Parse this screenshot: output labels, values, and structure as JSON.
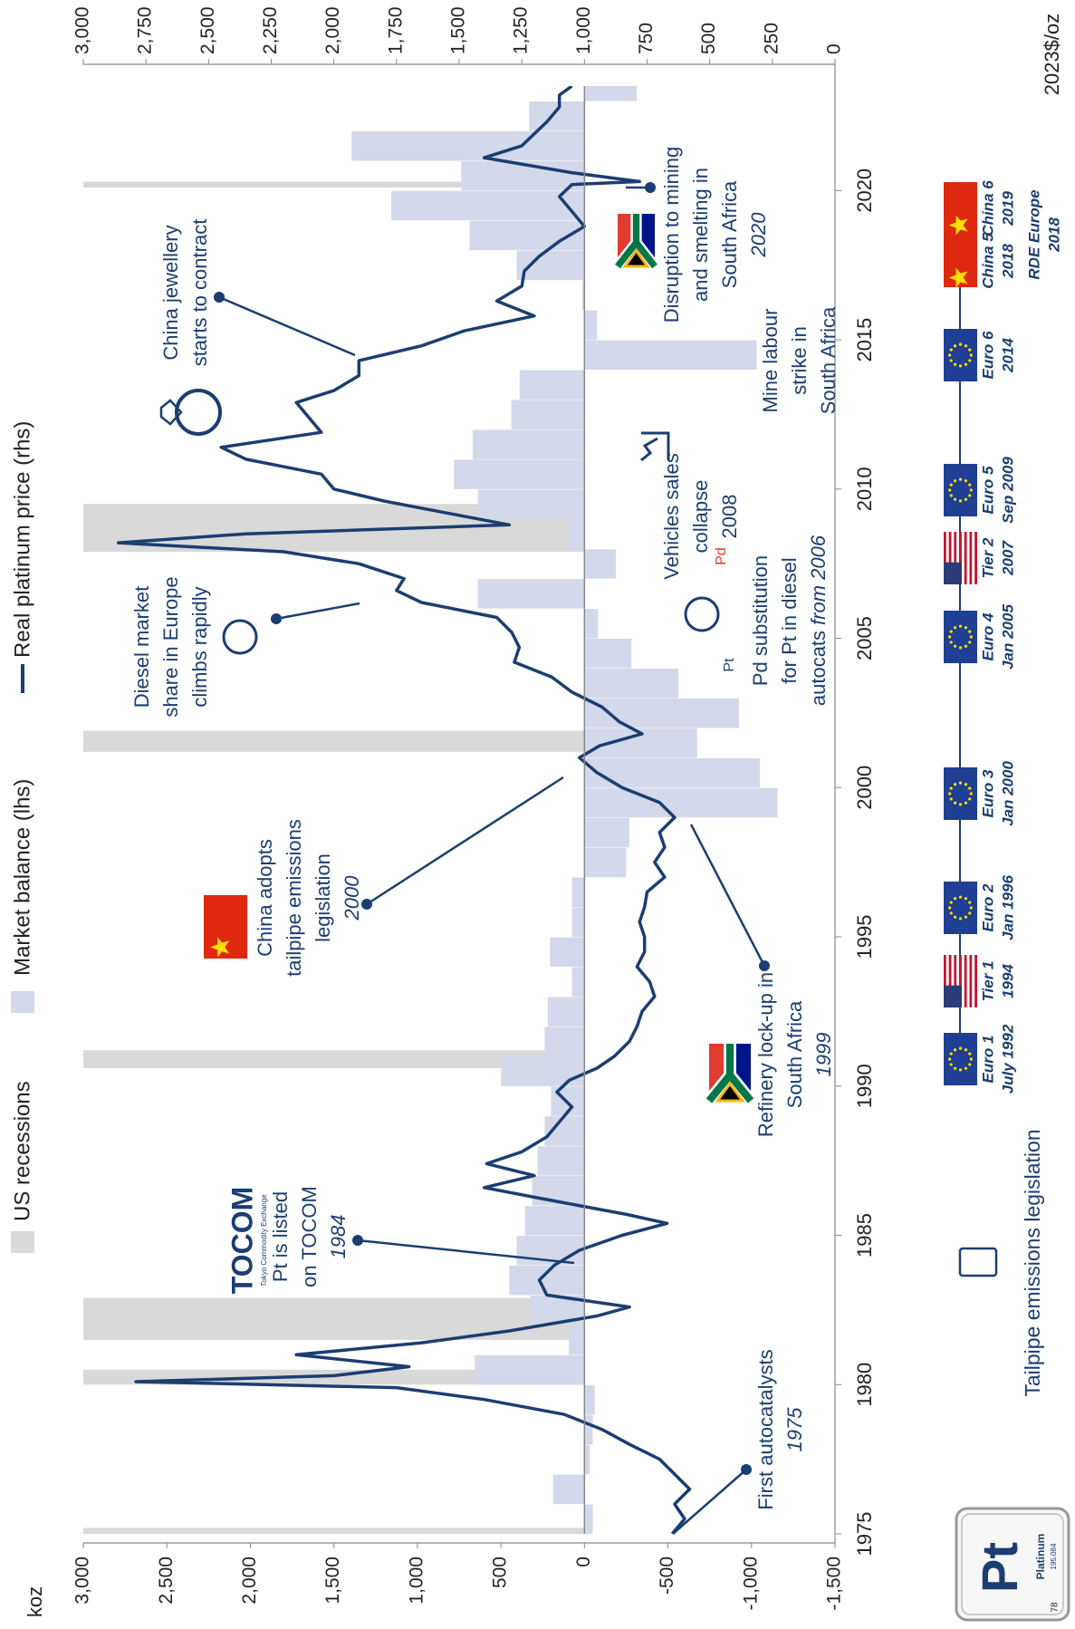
{
  "chart_data": {
    "type": "combo",
    "ylabel": "koz",
    "y2label": "2023$/oz",
    "xlim": [
      1975,
      2023.5
    ],
    "ylim": [
      -1500,
      3000
    ],
    "y2lim": [
      0,
      3000
    ],
    "xticks": [
      1975,
      1980,
      1985,
      1990,
      1995,
      2000,
      2005,
      2010,
      2015,
      2020
    ],
    "yticks": [
      {
        "value": 3000,
        "label": "3,000"
      },
      {
        "value": 2500,
        "label": "2,500"
      },
      {
        "value": 2000,
        "label": "2,000"
      },
      {
        "value": 1500,
        "label": "1,500"
      },
      {
        "value": 1000,
        "label": "1,000"
      },
      500,
      0,
      -500,
      {
        "value": -1000,
        "label": "-1,000"
      },
      {
        "value": -1500,
        "label": "-1,500"
      }
    ],
    "y2ticks": [
      {
        "value": 3000,
        "label": "3,000"
      },
      {
        "value": 2750,
        "label": "2,750"
      },
      {
        "value": 2500,
        "label": "2,500"
      },
      {
        "value": 2250,
        "label": "2,250"
      },
      {
        "value": 2000,
        "label": "2,000"
      },
      {
        "value": 1750,
        "label": "1,750"
      },
      {
        "value": 1500,
        "label": "1,500"
      },
      {
        "value": 1250,
        "label": "1,250"
      },
      {
        "value": 1000,
        "label": "1,000"
      },
      750,
      500,
      250,
      0
    ],
    "recessions": {
      "name": "US recessions",
      "color": "#d9d9d9",
      "periods": [
        [
          1973.9,
          1975.2
        ],
        [
          1980.0,
          1980.5
        ],
        [
          1981.5,
          1982.9
        ],
        [
          1990.6,
          1991.2
        ],
        [
          2001.2,
          2001.9
        ],
        [
          2007.9,
          2009.5
        ],
        [
          2020.1,
          2020.3
        ]
      ]
    },
    "series": [
      {
        "name": "Market balance (lhs)",
        "type": "bar",
        "color": "#d3d9ea",
        "x": [
          1975,
          1976,
          1977,
          1978,
          1979,
          1980,
          1981,
          1982,
          1983,
          1984,
          1985,
          1986,
          1987,
          1988,
          1989,
          1990,
          1991,
          1992,
          1993,
          1994,
          1995,
          1996,
          1997,
          1998,
          1999,
          2000,
          2001,
          2002,
          2003,
          2004,
          2005,
          2006,
          2007,
          2008,
          2009,
          2010,
          2011,
          2012,
          2013,
          2014,
          2015,
          2016,
          2017,
          2018,
          2019,
          2020,
          2021,
          2022,
          2023
        ],
        "values": [
          -50,
          188,
          -31,
          -50,
          -62,
          656,
          94,
          325,
          450,
          406,
          356,
          313,
          281,
          238,
          200,
          500,
          238,
          219,
          75,
          206,
          75,
          75,
          -250,
          -269,
          -1156,
          -1050,
          -675,
          -925,
          -563,
          -281,
          -81,
          638,
          -188,
          94,
          638,
          781,
          669,
          438,
          388,
          -1031,
          -75,
          13,
          406,
          688,
          1156,
          738,
          1394,
          331,
          -313
        ]
      },
      {
        "name": "Real platinum price (rhs)",
        "type": "line",
        "axis": "y2",
        "color": "#1b3e72",
        "x": [
          1975.0,
          1975.5,
          1976.0,
          1976.5,
          1977.0,
          1977.5,
          1978.0,
          1978.5,
          1979.0,
          1979.5,
          1979.9,
          1980.1,
          1980.3,
          1980.6,
          1981.0,
          1981.4,
          1981.8,
          1982.3,
          1982.6,
          1983.0,
          1983.5,
          1984.0,
          1984.5,
          1985.0,
          1985.4,
          1985.7,
          1986.2,
          1986.6,
          1987.0,
          1987.4,
          1987.8,
          1988.3,
          1988.8,
          1989.3,
          1989.8,
          1990.2,
          1990.6,
          1991.0,
          1991.5,
          1992.0,
          1992.5,
          1993.0,
          1993.5,
          1994.0,
          1994.5,
          1995.0,
          1995.5,
          1996.0,
          1996.5,
          1997.0,
          1997.5,
          1998.0,
          1998.5,
          1999.0,
          1999.5,
          2000.0,
          2000.5,
          2001.0,
          2001.4,
          2001.8,
          2002.2,
          2002.7,
          2003.2,
          2003.7,
          2004.2,
          2004.7,
          2005.2,
          2005.7,
          2006.2,
          2006.6,
          2007.0,
          2007.5,
          2007.9,
          2008.2,
          2008.5,
          2008.8,
          2009.2,
          2009.6,
          2010.0,
          2010.5,
          2011.0,
          2011.4,
          2011.9,
          2012.4,
          2012.9,
          2013.3,
          2013.8,
          2014.3,
          2014.8,
          2015.3,
          2015.8,
          2016.3,
          2016.8,
          2017.3,
          2017.8,
          2018.3,
          2018.8,
          2019.3,
          2019.8,
          2020.2,
          2020.3,
          2020.6,
          2021.1,
          2021.5,
          2021.9,
          2022.3,
          2022.8,
          2023.2,
          2023.5
        ],
        "values": [
          650,
          600,
          640,
          580,
          640,
          700,
          820,
          930,
          1080,
          1400,
          1750,
          2790,
          2000,
          1700,
          2150,
          1650,
          1300,
          950,
          820,
          1150,
          1180,
          1120,
          1020,
          850,
          670,
          830,
          1150,
          1400,
          1200,
          1390,
          1250,
          1150,
          1100,
          1050,
          1110,
          1060,
          950,
          880,
          820,
          790,
          770,
          720,
          740,
          790,
          760,
          760,
          780,
          760,
          750,
          680,
          720,
          680,
          700,
          640,
          700,
          850,
          950,
          1020,
          940,
          770,
          860,
          930,
          1050,
          1130,
          1280,
          1260,
          1290,
          1350,
          1650,
          1750,
          1720,
          1900,
          2200,
          2860,
          2350,
          1300,
          1550,
          1800,
          2000,
          2050,
          2350,
          2450,
          2050,
          2100,
          2150,
          2000,
          1900,
          1900,
          1650,
          1480,
          1200,
          1350,
          1250,
          1240,
          1180,
          1100,
          1000,
          1050,
          1100,
          1050,
          780,
          1050,
          1400,
          1250,
          1200,
          1150,
          1100,
          1100,
          1050
        ]
      }
    ],
    "annotations": [
      {
        "lines": [
          "First autocatalysts"
        ],
        "year": "1975"
      },
      {
        "lines": [
          "Pt is listed",
          "on TOCOM"
        ],
        "year": "1984"
      },
      {
        "lines": [
          "Refinery lock-up in",
          "South Africa"
        ],
        "year": "1999"
      },
      {
        "lines": [
          "China adopts",
          "tailpipe emissions",
          "legislation"
        ],
        "year": "2000"
      },
      {
        "lines": [
          "Diesel market",
          "share in Europe",
          "climbs rapidly"
        ]
      },
      {
        "lines": [
          "Pd substitution",
          "for Pt in diesel",
          "autocats"
        ],
        "year": "from 2006",
        "year_inline": true
      },
      {
        "lines": [
          "Vehicles sales",
          "collapse",
          "2008"
        ]
      },
      {
        "lines": [
          "China jewellery",
          "starts to contract"
        ]
      },
      {
        "lines": [
          "Mine labour",
          "strike in",
          "South Africa"
        ]
      },
      {
        "lines": [
          "Disruption to mining",
          "and smelting in",
          "South Africa"
        ],
        "year": "2020"
      }
    ],
    "icon_labels": {
      "tocom": "TOCOM",
      "tocom_sub": "Tokyo Commodity Exchange",
      "pd": "Pd",
      "pt": "Pt"
    },
    "legislation": {
      "title": "Tailpipe emissions legislation",
      "items": [
        {
          "name": "Euro 1",
          "date": "July 1992",
          "flag": "eu"
        },
        {
          "name": "Tier 1",
          "date": "1994",
          "flag": "us"
        },
        {
          "name": "Euro 2",
          "date": "Jan 1996",
          "flag": "eu"
        },
        {
          "name": "Euro 3",
          "date": "Jan 2000",
          "flag": "eu"
        },
        {
          "name": "Euro 4",
          "date": "Jan 2005",
          "flag": "eu"
        },
        {
          "name": "Tier 2",
          "date": "2007",
          "flag": "us"
        },
        {
          "name": "Euro 5",
          "date": "Sep 2009",
          "flag": "eu"
        },
        {
          "name": "Euro 6",
          "date": "2014",
          "flag": "eu"
        },
        {
          "name": "China 5",
          "date": "2018",
          "flag": "cn"
        },
        {
          "name": "China 6",
          "date": "2019",
          "flag": "cn"
        },
        {
          "name": "RDE Europe",
          "date": "2018",
          "flag": "none"
        }
      ]
    },
    "element": {
      "symbol": "Pt",
      "name": "Platinum",
      "mass": 195.084,
      "number": 78
    }
  }
}
